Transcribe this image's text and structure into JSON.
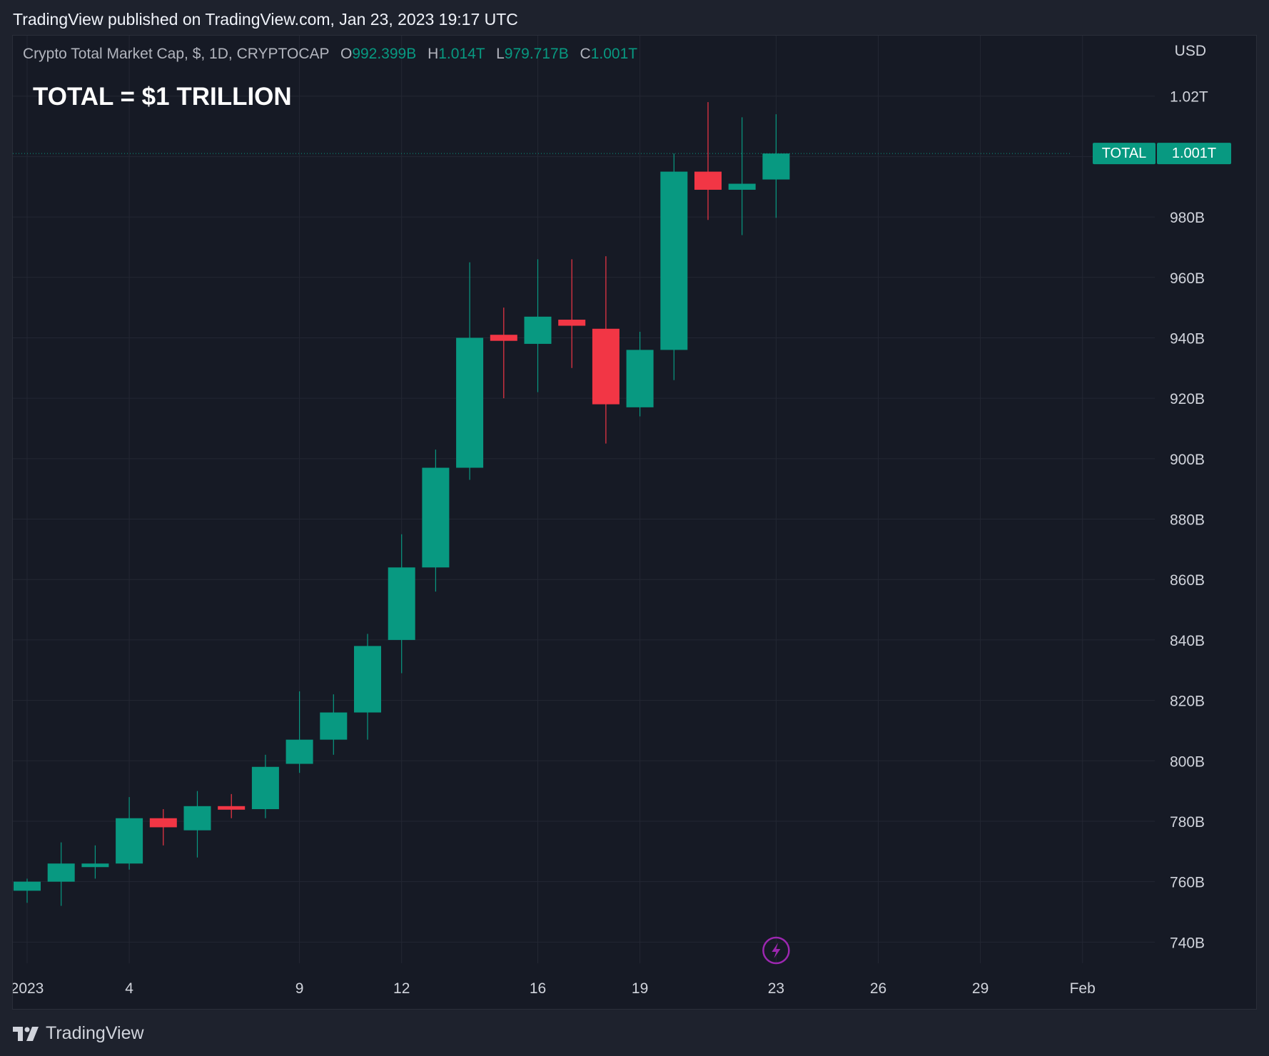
{
  "header": {
    "published_text": "TradingView published on TradingView.com, Jan 23, 2023 19:17 UTC"
  },
  "legend": {
    "symbol_text": "Crypto Total Market Cap, $, 1D, CRYPTOCAP",
    "open_label": "O",
    "open_value": "992.399B",
    "high_label": "H",
    "high_value": "1.014T",
    "low_label": "L",
    "low_value": "979.717B",
    "close_label": "C",
    "close_value": "1.001T"
  },
  "overlay": {
    "title": "TOTAL = $1 TRILLION"
  },
  "axis": {
    "currency": "USD"
  },
  "price_badge": {
    "name": "TOTAL",
    "value": "1.001T"
  },
  "footer": {
    "brand": "TradingView"
  },
  "colors": {
    "up": "#089981",
    "down": "#f23645",
    "background": "#161a25",
    "grid": "#232733",
    "accent_icon": "#9c27b0"
  },
  "icons": {
    "logo": "tradingview-logo-icon",
    "marker": "lightning-icon"
  },
  "chart_data": {
    "type": "candlestick",
    "title": "",
    "x_tick_labels": [
      "2023",
      "4",
      "9",
      "12",
      "16",
      "19",
      "23",
      "26",
      "29",
      "Feb"
    ],
    "y_tick_labels": [
      "740B",
      "760B",
      "780B",
      "800B",
      "820B",
      "840B",
      "860B",
      "880B",
      "900B",
      "920B",
      "940B",
      "960B",
      "980B",
      "1.02T"
    ],
    "y_tick_values": [
      740,
      760,
      780,
      800,
      820,
      840,
      860,
      880,
      900,
      920,
      940,
      960,
      980,
      1020
    ],
    "ylim": [
      733,
      1040
    ],
    "unit": "B USD",
    "grid": true,
    "last_price": 1001,
    "candles": [
      {
        "date": "2023-01-01",
        "open": 757,
        "high": 761,
        "low": 753,
        "close": 760
      },
      {
        "date": "2023-01-02",
        "open": 760,
        "high": 773,
        "low": 752,
        "close": 766
      },
      {
        "date": "2023-01-03",
        "open": 765,
        "high": 772,
        "low": 761,
        "close": 766
      },
      {
        "date": "2023-01-04",
        "open": 766,
        "high": 788,
        "low": 764,
        "close": 781
      },
      {
        "date": "2023-01-05",
        "open": 781,
        "high": 784,
        "low": 772,
        "close": 778
      },
      {
        "date": "2023-01-06",
        "open": 777,
        "high": 790,
        "low": 768,
        "close": 785
      },
      {
        "date": "2023-01-07",
        "open": 785,
        "high": 789,
        "low": 781,
        "close": 784
      },
      {
        "date": "2023-01-08",
        "open": 784,
        "high": 802,
        "low": 781,
        "close": 798
      },
      {
        "date": "2023-01-09",
        "open": 799,
        "high": 823,
        "low": 796,
        "close": 807
      },
      {
        "date": "2023-01-10",
        "open": 807,
        "high": 822,
        "low": 802,
        "close": 816
      },
      {
        "date": "2023-01-11",
        "open": 816,
        "high": 842,
        "low": 807,
        "close": 838
      },
      {
        "date": "2023-01-12",
        "open": 840,
        "high": 875,
        "low": 829,
        "close": 864
      },
      {
        "date": "2023-01-13",
        "open": 864,
        "high": 903,
        "low": 856,
        "close": 897
      },
      {
        "date": "2023-01-14",
        "open": 897,
        "high": 965,
        "low": 893,
        "close": 940
      },
      {
        "date": "2023-01-15",
        "open": 941,
        "high": 950,
        "low": 920,
        "close": 939
      },
      {
        "date": "2023-01-16",
        "open": 938,
        "high": 966,
        "low": 922,
        "close": 947
      },
      {
        "date": "2023-01-17",
        "open": 946,
        "high": 966,
        "low": 930,
        "close": 944
      },
      {
        "date": "2023-01-18",
        "open": 943,
        "high": 967,
        "low": 905,
        "close": 918
      },
      {
        "date": "2023-01-19",
        "open": 917,
        "high": 942,
        "low": 914,
        "close": 936
      },
      {
        "date": "2023-01-20",
        "open": 936,
        "high": 1001,
        "low": 926,
        "close": 995
      },
      {
        "date": "2023-01-21",
        "open": 995,
        "high": 1018,
        "low": 979,
        "close": 989
      },
      {
        "date": "2023-01-22",
        "open": 989,
        "high": 1013,
        "low": 974,
        "close": 991
      },
      {
        "date": "2023-01-23",
        "open": 992.399,
        "high": 1014,
        "low": 979.717,
        "close": 1001
      }
    ]
  }
}
